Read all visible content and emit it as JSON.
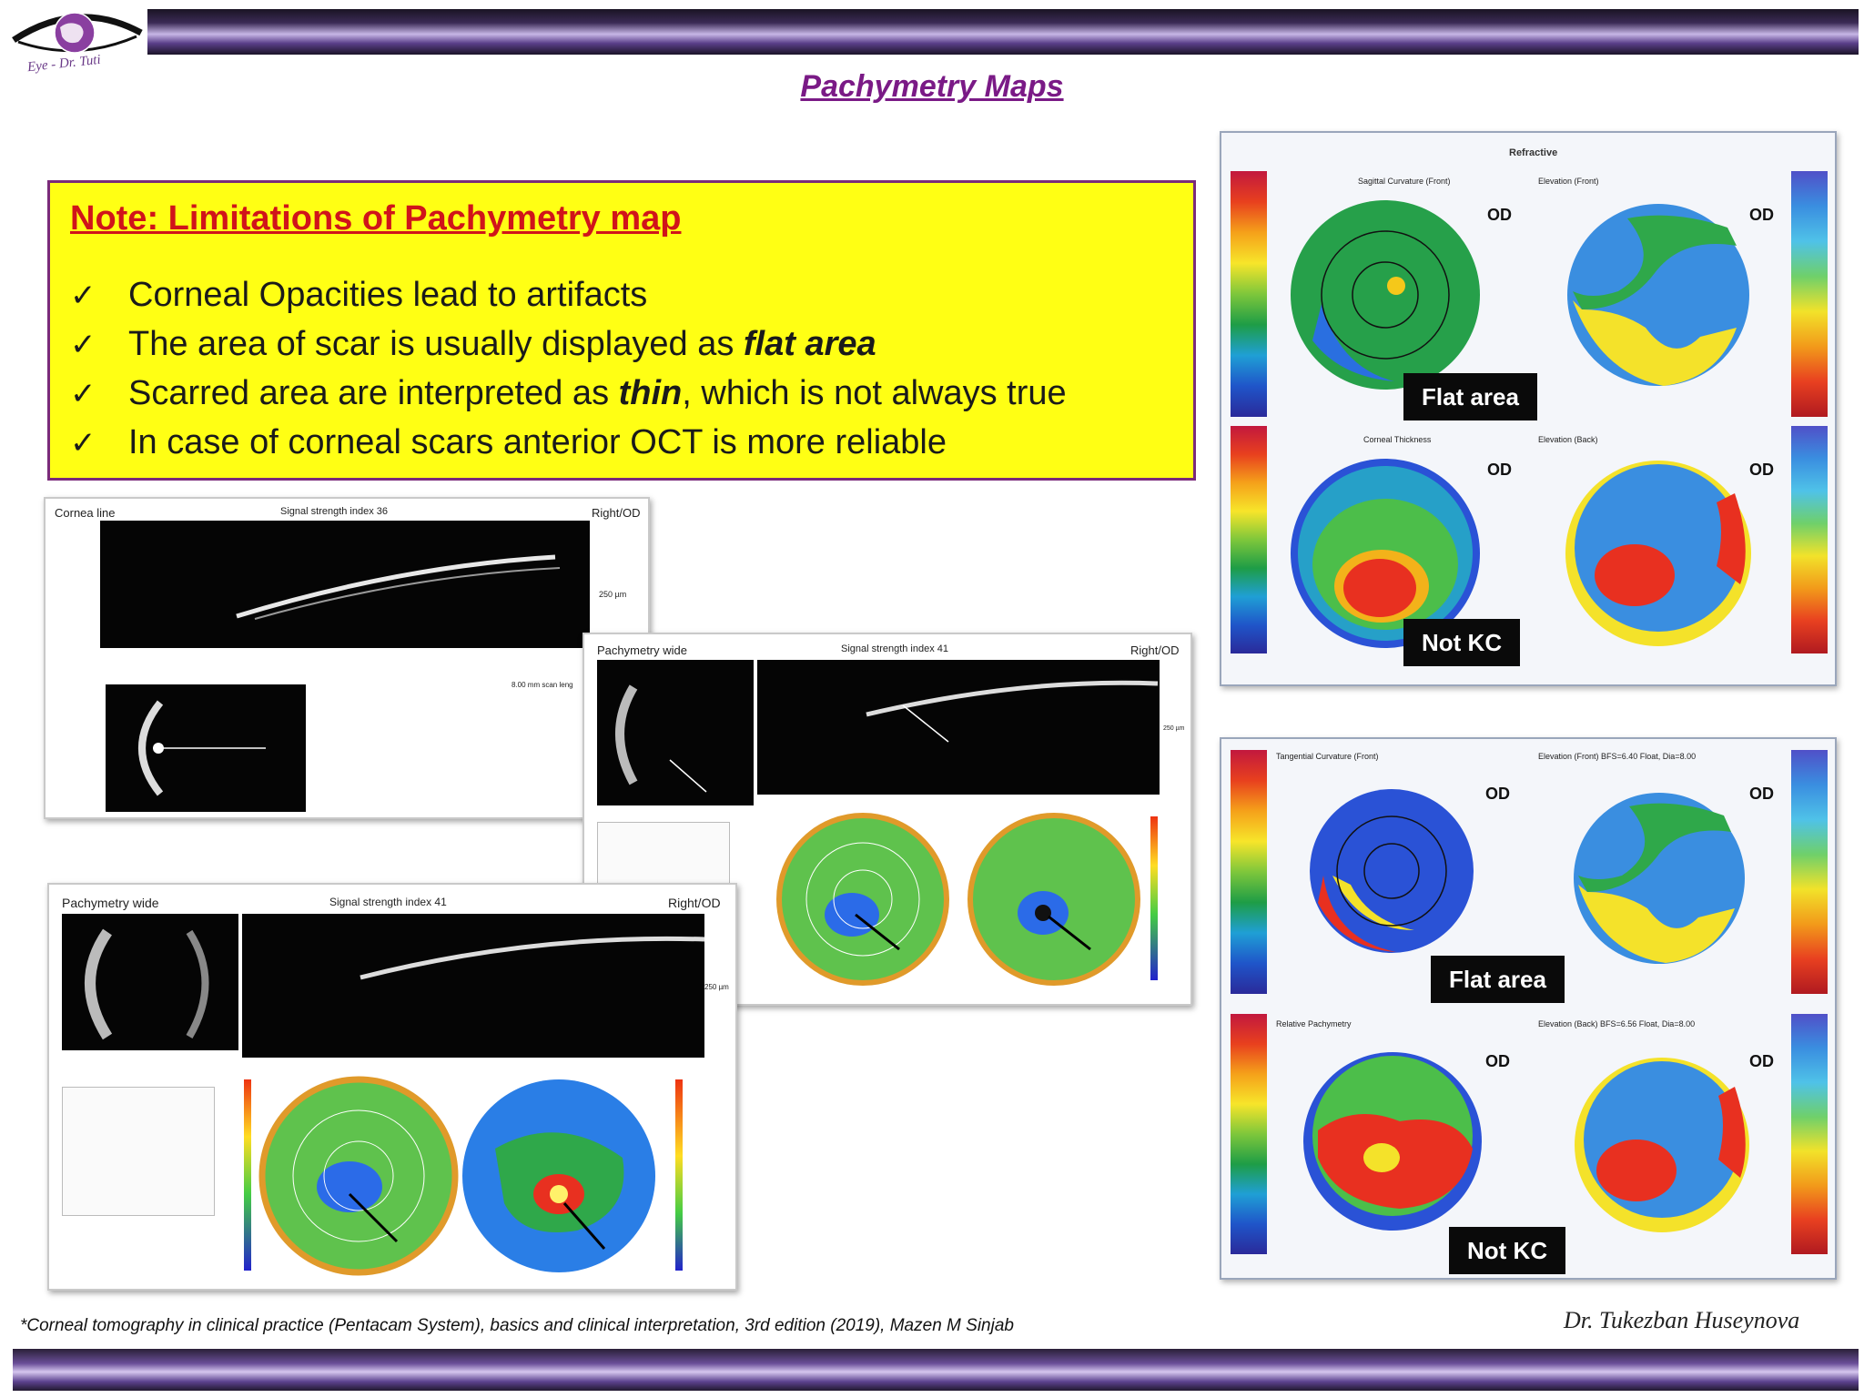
{
  "header": {
    "logo_text": "Eye - Dr. Tuti",
    "title": "Pachymetry Maps"
  },
  "note": {
    "heading": "Note: Limitations of Pachymetry map",
    "check_glyph": "✓",
    "items": [
      {
        "pre": "Corneal Opacities lead to artifacts",
        "em": "",
        "post": ""
      },
      {
        "pre": "The area of scar is usually displayed as ",
        "em": "flat area",
        "post": ""
      },
      {
        "pre": "Scarred area are interpreted as ",
        "em": "thin",
        "post": ", which is not always true"
      },
      {
        "pre": "In case of corneal scars anterior OCT is more reliable",
        "em": "",
        "post": ""
      }
    ]
  },
  "oct": {
    "cornea_line": {
      "title": "Cornea line",
      "signal": "Signal strength index   36",
      "eye": "Right/OD",
      "scale": "250 µm",
      "scan": "8.00 mm scan leng"
    },
    "pachy_small": {
      "title": "Pachymetry wide",
      "signal": "Signal strength index  41",
      "eye": "Right/OD",
      "scale": "250 µm"
    },
    "pachy_large": {
      "title": "Pachymetry wide",
      "signal": "Signal strength index  41",
      "eye": "Right/OD",
      "scale": "250 µm"
    }
  },
  "pentacam_top": {
    "header": "Refractive",
    "maps": [
      {
        "title": "Sagittal Curvature (Front)",
        "eye": "OD"
      },
      {
        "title": "Elevation (Front)",
        "eye": "OD"
      },
      {
        "title": "Corneal Thickness",
        "eye": "OD"
      },
      {
        "title": "Elevation (Back)",
        "eye": "OD"
      }
    ]
  },
  "pentacam_bottom": {
    "maps": [
      {
        "title": "Tangential Curvature (Front)",
        "eye": "OD"
      },
      {
        "title": "Elevation (Front) BFS=6.40 Float, Dia=8.00",
        "eye": "OD"
      },
      {
        "title": "Relative Pachymetry",
        "eye": "OD"
      },
      {
        "title": "Elevation (Back) BFS=6.56 Float, Dia=8.00",
        "eye": "OD"
      }
    ]
  },
  "labels": {
    "flat_area_1": "Flat area",
    "not_kc_1": "Not KC",
    "flat_area_2": "Flat area",
    "not_kc_2": "Not KC"
  },
  "footer": {
    "citation": "*Corneal tomography in clinical practice (Pentacam System), basics and clinical interpretation, 3rd edition (2019), Mazen M Sinjab",
    "author": "Dr. Tukezban Huseynova"
  },
  "colors": {
    "title": "#7a1a86",
    "note_bg": "#ffff14",
    "note_heading": "#d0141a",
    "note_border": "#7a2b7a"
  }
}
